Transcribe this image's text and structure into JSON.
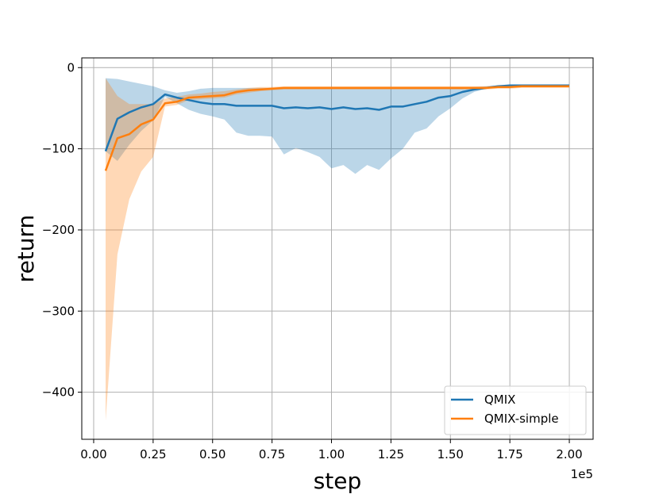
{
  "chart_data": {
    "type": "line",
    "xlabel": "step",
    "ylabel": "return",
    "x_offset_label": "1e5",
    "xlim": [
      -0.05,
      2.1
    ],
    "ylim": [
      -458,
      12
    ],
    "x_ticks": [
      {
        "value": 0.0,
        "label": "0.00"
      },
      {
        "value": 0.25,
        "label": "0.25"
      },
      {
        "value": 0.5,
        "label": "0.50"
      },
      {
        "value": 0.75,
        "label": "0.75"
      },
      {
        "value": 1.0,
        "label": "1.00"
      },
      {
        "value": 1.25,
        "label": "1.25"
      },
      {
        "value": 1.5,
        "label": "1.50"
      },
      {
        "value": 1.75,
        "label": "1.75"
      },
      {
        "value": 2.0,
        "label": "2.00"
      }
    ],
    "y_ticks": [
      {
        "value": 0,
        "label": "0"
      },
      {
        "value": -100,
        "label": "−100"
      },
      {
        "value": -200,
        "label": "−200"
      },
      {
        "value": -300,
        "label": "−300"
      },
      {
        "value": -400,
        "label": "−400"
      }
    ],
    "grid": true,
    "legend_position": "lower-right",
    "series": [
      {
        "name": "QMIX",
        "color": "#1f77b4",
        "band_color": "#1f77b4",
        "band_opacity": 0.3,
        "x": [
          0.05,
          0.1,
          0.15,
          0.2,
          0.25,
          0.3,
          0.35,
          0.4,
          0.45,
          0.5,
          0.55,
          0.6,
          0.65,
          0.7,
          0.75,
          0.8,
          0.85,
          0.9,
          0.95,
          1.0,
          1.05,
          1.1,
          1.15,
          1.2,
          1.25,
          1.3,
          1.35,
          1.4,
          1.45,
          1.5,
          1.55,
          1.6,
          1.65,
          1.7,
          1.75,
          1.8,
          1.85,
          1.9,
          1.95,
          2.0
        ],
        "y": [
          -103,
          -63,
          -55,
          -49,
          -45,
          -33,
          -37,
          -40,
          -43,
          -45,
          -45,
          -47,
          -47,
          -47,
          -47,
          -50,
          -49,
          -50,
          -49,
          -51,
          -49,
          -51,
          -50,
          -52,
          -48,
          -48,
          -45,
          -42,
          -37,
          -35,
          -30,
          -27,
          -25,
          -23,
          -22,
          -22,
          -22,
          -22,
          -22,
          -22
        ],
        "upper": [
          -13,
          -14,
          -17,
          -20,
          -23,
          -28,
          -31,
          -29,
          -26,
          -25,
          -25,
          -25,
          -25,
          -25,
          -25,
          -25,
          -25,
          -25,
          -25,
          -25,
          -25,
          -25,
          -25,
          -25,
          -25,
          -25,
          -25,
          -25,
          -25,
          -25,
          -25,
          -24,
          -23,
          -22,
          -21,
          -21,
          -21,
          -21,
          -21,
          -21
        ],
        "lower": [
          -103,
          -115,
          -95,
          -78,
          -65,
          -36,
          -44,
          -52,
          -57,
          -60,
          -64,
          -80,
          -84,
          -84,
          -85,
          -107,
          -99,
          -104,
          -110,
          -124,
          -120,
          -131,
          -120,
          -126,
          -112,
          -100,
          -80,
          -75,
          -60,
          -50,
          -38,
          -30,
          -26,
          -24,
          -23,
          -23,
          -23,
          -23,
          -23,
          -23
        ]
      },
      {
        "name": "QMIX-simple",
        "color": "#ff7f0e",
        "band_color": "#ff7f0e",
        "band_opacity": 0.3,
        "x": [
          0.05,
          0.1,
          0.15,
          0.2,
          0.25,
          0.3,
          0.35,
          0.4,
          0.45,
          0.5,
          0.55,
          0.6,
          0.65,
          0.7,
          0.75,
          0.8,
          0.85,
          0.9,
          0.95,
          1.0,
          1.05,
          1.1,
          1.15,
          1.2,
          1.25,
          1.3,
          1.35,
          1.4,
          1.45,
          1.5,
          1.55,
          1.6,
          1.65,
          1.7,
          1.75,
          1.8,
          1.85,
          1.9,
          1.95,
          2.0
        ],
        "y": [
          -127,
          -87,
          -82,
          -70,
          -64,
          -44,
          -42,
          -37,
          -36,
          -35,
          -34,
          -30,
          -28,
          -27,
          -26,
          -25,
          -25,
          -25,
          -25,
          -25,
          -25,
          -25,
          -25,
          -25,
          -25,
          -25,
          -25,
          -25,
          -25,
          -25,
          -25,
          -25,
          -25,
          -24,
          -24,
          -23,
          -23,
          -23,
          -23,
          -23
        ],
        "upper": [
          -13,
          -35,
          -45,
          -45,
          -45,
          -38,
          -36,
          -33,
          -32,
          -30,
          -29,
          -27,
          -25,
          -24,
          -24,
          -23,
          -23,
          -23,
          -23,
          -23,
          -23,
          -23,
          -23,
          -23,
          -23,
          -23,
          -23,
          -23,
          -23,
          -23,
          -23,
          -23,
          -23,
          -22,
          -22,
          -22,
          -22,
          -22,
          -22,
          -22
        ],
        "lower": [
          -435,
          -230,
          -162,
          -128,
          -110,
          -48,
          -46,
          -40,
          -39,
          -38,
          -37,
          -33,
          -31,
          -29,
          -28,
          -27,
          -27,
          -27,
          -27,
          -27,
          -27,
          -27,
          -27,
          -27,
          -27,
          -27,
          -27,
          -27,
          -27,
          -27,
          -27,
          -27,
          -27,
          -26,
          -26,
          -25,
          -25,
          -25,
          -25,
          -25
        ]
      }
    ]
  }
}
